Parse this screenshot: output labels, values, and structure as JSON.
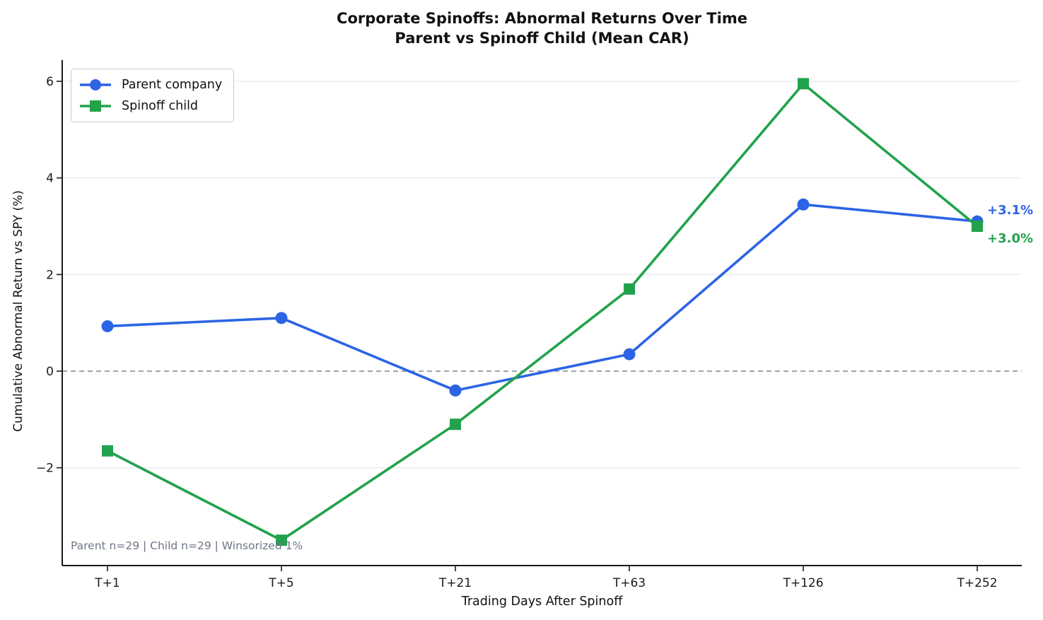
{
  "chart_data": {
    "type": "line",
    "title": "Corporate Spinoffs: Abnormal Returns Over Time",
    "subtitle": "Parent vs Spinoff Child (Mean CAR)",
    "xlabel": "Trading Days After Spinoff",
    "ylabel": "Cumulative Abnormal Return vs SPY (%)",
    "categories": [
      "T+1",
      "T+5",
      "T+21",
      "T+63",
      "T+126",
      "T+252"
    ],
    "series": [
      {
        "name": "Parent company",
        "marker": "circle",
        "color": "#2c64e4",
        "values": [
          0.93,
          1.1,
          -0.4,
          0.35,
          3.45,
          3.1
        ],
        "end_label": "+3.1%"
      },
      {
        "name": "Spinoff child",
        "marker": "square",
        "color": "#22a24c",
        "values": [
          -1.65,
          -3.5,
          -1.1,
          1.7,
          5.95,
          3.0
        ],
        "end_label": "+3.0%"
      }
    ],
    "yticks": [
      -2,
      0,
      2,
      4,
      6
    ],
    "ylim": [
      -4.05,
      6.45
    ],
    "grid": "horizontal",
    "zero_line": true,
    "legend_position": "upper-left",
    "footnote": "Parent n=29  |  Child n=29  |  Winsorized 1%"
  },
  "colors": {
    "parent_line": "#2c64e4",
    "child_line": "#22a24c",
    "grid": "#e8eaef",
    "zero_line": "#7e8795",
    "axis": "#1a1a1a",
    "footnote_text": "#6e7686",
    "background": "#ffffff"
  }
}
